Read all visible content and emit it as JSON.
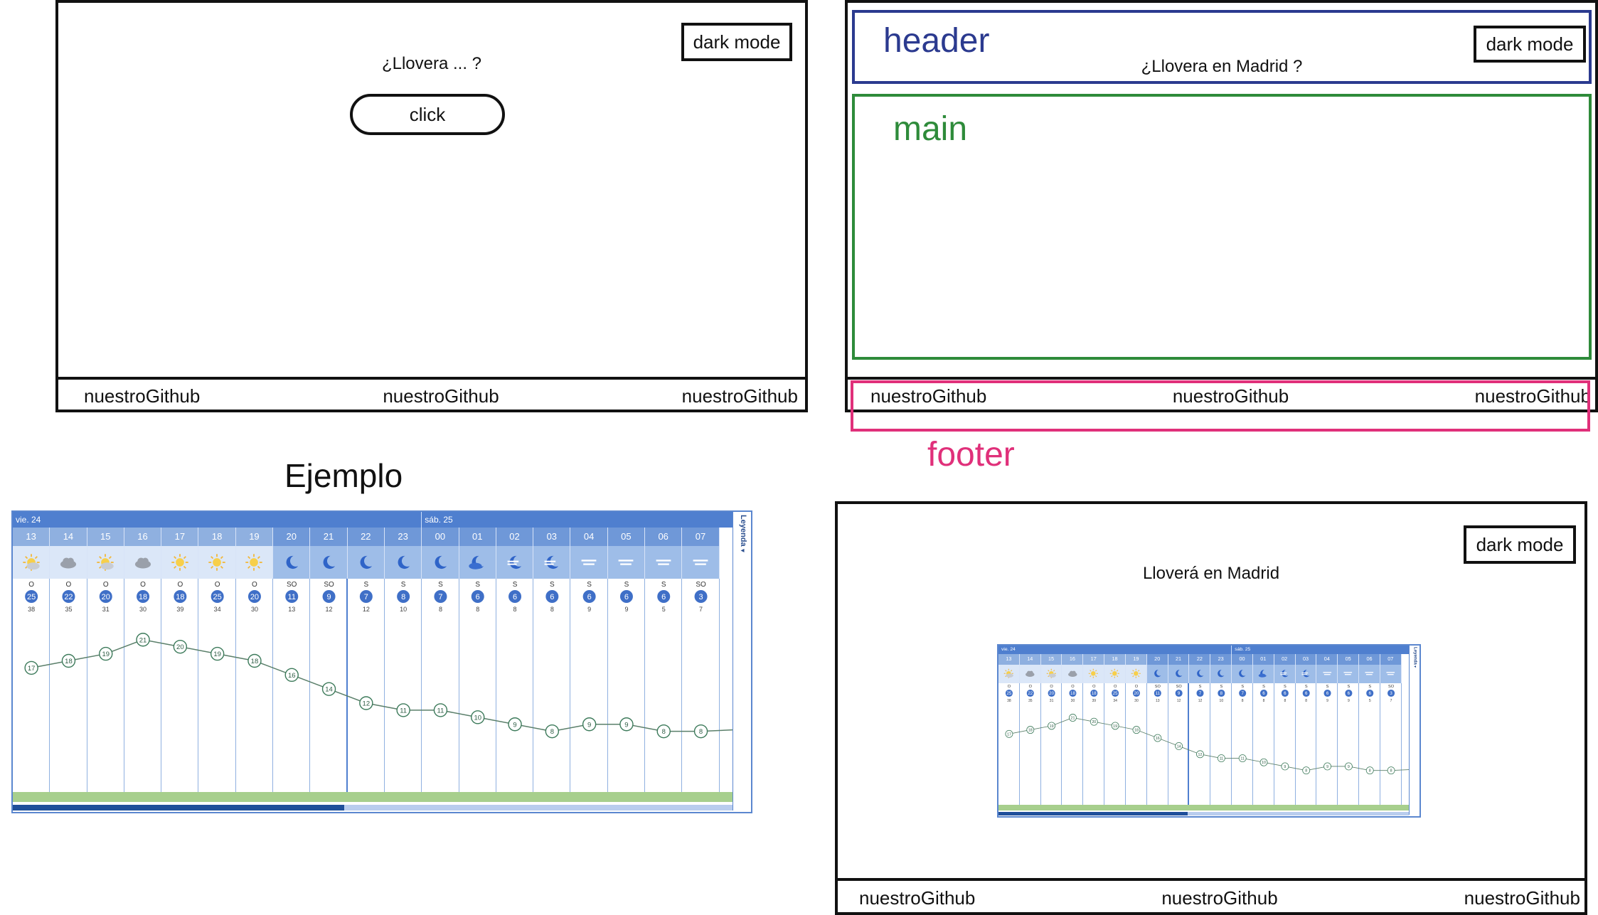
{
  "mockup1": {
    "dark_mode_label": "dark mode",
    "question": "¿Llovera ... ?",
    "click_label": "click",
    "footer_links": [
      "nuestroGithub",
      "nuestroGithub",
      "nuestroGithub"
    ]
  },
  "mockup2": {
    "header_label": "header",
    "dark_mode_label": "dark mode",
    "question": "¿Llovera en Madrid ?",
    "main_label": "main",
    "footer_label": "footer",
    "footer_links": [
      "nuestroGithub",
      "nuestroGithub",
      "nuestroGithub"
    ],
    "colors": {
      "header": "#2b3a8f",
      "main": "#2e8b3a",
      "footer": "#e0307a"
    }
  },
  "example": {
    "title": "Ejemplo",
    "widget": {
      "day1": "vie. 24",
      "day2": "sáb. 25",
      "legend_label": "Leyenda",
      "hours": [
        "13",
        "14",
        "15",
        "16",
        "17",
        "18",
        "19",
        "20",
        "21",
        "22",
        "23",
        "00",
        "01",
        "02",
        "03",
        "04",
        "05",
        "06",
        "07"
      ],
      "icons": [
        "sun-cloud-icon",
        "cloud-icon",
        "sun-cloud-icon",
        "cloud-icon",
        "sun-icon",
        "sun-icon",
        "sun-icon",
        "moon-icon",
        "moon-icon",
        "moon-icon",
        "moon-icon",
        "moon-icon",
        "moon-cloud-icon",
        "moon-haze-icon",
        "moon-haze-icon",
        "fog-icon",
        "fog-icon",
        "fog-icon",
        "fog-icon"
      ],
      "wind_dir": [
        "O",
        "O",
        "O",
        "O",
        "O",
        "O",
        "O",
        "SO",
        "SO",
        "S",
        "S",
        "S",
        "S",
        "S",
        "S",
        "S",
        "S",
        "S",
        "SO"
      ],
      "wind_speed": [
        "25",
        "22",
        "20",
        "18",
        "18",
        "25",
        "20",
        "11",
        "9",
        "7",
        "8",
        "7",
        "6",
        "6",
        "6",
        "6",
        "6",
        "6",
        "3"
      ],
      "gusts": [
        "38",
        "35",
        "31",
        "30",
        "39",
        "34",
        "30",
        "13",
        "12",
        "12",
        "10",
        "8",
        "8",
        "8",
        "8",
        "9",
        "9",
        "5",
        "7"
      ],
      "temps": [
        17,
        18,
        19,
        21,
        20,
        19,
        18,
        16,
        14,
        12,
        11,
        11,
        10,
        9,
        8,
        9,
        9,
        8,
        8
      ]
    }
  },
  "mockup3": {
    "dark_mode_label": "dark mode",
    "title": "Lloverá en Madrid",
    "footer_links": [
      "nuestroGithub",
      "nuestroGithub",
      "nuestroGithub"
    ]
  }
}
